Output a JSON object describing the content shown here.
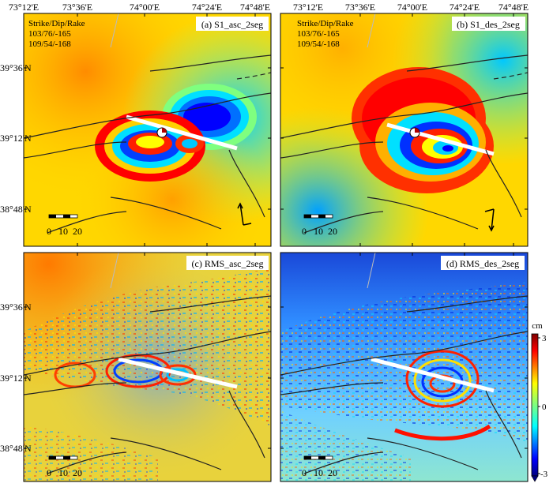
{
  "axes": {
    "lon_labels": [
      "73°12'E",
      "73°36'E",
      "74°00'E",
      "74°24'E",
      "74°48'E"
    ],
    "lat_labels": [
      "39°36'N",
      "39°12'N",
      "38°48'N"
    ]
  },
  "panels": [
    {
      "label": "(a) S1_asc_2seg",
      "fault_params": [
        "Strike/Dip/Rake",
        "103/76/-165",
        "109/54/-168"
      ],
      "background": "#ffd700",
      "scale_labels": [
        "0",
        "10",
        "20"
      ]
    },
    {
      "label": "(b) S1_des_2seg",
      "fault_params": [
        "Strike/Dip/Rake",
        "103/76/-165",
        "109/54/-168"
      ],
      "background": "#ffd700",
      "scale_labels": [
        "0",
        "10",
        "20"
      ]
    },
    {
      "label": "(c) RMS_asc_2seg",
      "fault_params": [],
      "background": "#e8d23c",
      "scale_labels": [
        "0",
        "10",
        "20"
      ]
    },
    {
      "label": "(d) RMS_des_2seg",
      "fault_params": [],
      "background": "#3fb6ff",
      "scale_labels": [
        "0",
        "10",
        "20"
      ]
    }
  ],
  "colorbar": {
    "unit": "cm",
    "ticks": [
      "3",
      "0",
      "-3"
    ],
    "range": [
      -3,
      3
    ],
    "colormap": "jet"
  }
}
